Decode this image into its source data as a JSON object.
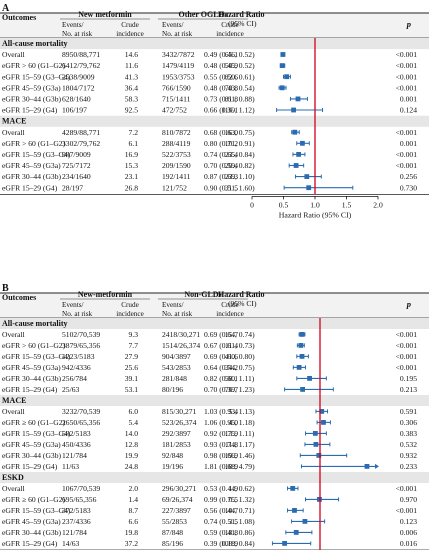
{
  "panels": [
    {
      "label": "A",
      "col_outcomes": "Outcomes",
      "group1": "New metformin",
      "group2": "Other OGLDs",
      "hr_header": [
        "Hazard Ratio",
        "(95% CI)"
      ],
      "p_header": "p",
      "sub_events": [
        "Events/",
        "No. at risk"
      ],
      "sub_crude": [
        "Crude",
        "incidence"
      ],
      "axis_label": "Hazard Ratio (95% CI)",
      "chart_data": {
        "type": "forest",
        "xlim": [
          0,
          2.0
        ],
        "ticks": [
          "0",
          "0.5",
          "1.0",
          "1.5",
          "2.0"
        ],
        "reference_line": 1.0,
        "sections": [
          {
            "title": "All-cause mortality",
            "rows": [
              {
                "label": "Overall",
                "ev1": "8950/88,771",
                "ci1": "14.6",
                "ev2": "3432/7872",
                "ci2": "65.1",
                "hr_text": "0.49 (0.46, 0.52)",
                "hr": 0.49,
                "lo": 0.46,
                "hi": 0.52,
                "p": "<0.001"
              },
              {
                "label": "eGFR > 60 (G1–G2)",
                "ev1": "6412/79,762",
                "ci1": "11.6",
                "ev2": "1479/4119",
                "ci2": "50.9",
                "hr_text": "0.48 (0.45, 0.52)",
                "hr": 0.48,
                "lo": 0.45,
                "hi": 0.52,
                "p": "<0.001"
              },
              {
                "label": "eGFR 15–59 (G3–G4)",
                "ev1": "2538/9009",
                "ci1": "41.3",
                "ev2": "1953/3753",
                "ci2": "82.6",
                "hr_text": "0.55 (0.50, 0.61)",
                "hr": 0.55,
                "lo": 0.5,
                "hi": 0.61,
                "p": "<0.001"
              },
              {
                "label": "eGFR 45–59 (G3a)",
                "ev1": "1804/7172",
                "ci1": "36.4",
                "ev2": "766/1590",
                "ci2": "70.8",
                "hr_text": "0.48 (0.43, 0.54)",
                "hr": 0.48,
                "lo": 0.43,
                "hi": 0.54,
                "p": "<0.001"
              },
              {
                "label": "eGFR 30–44 (G3b)",
                "ev1": "628/1640",
                "ci1": "58.3",
                "ev2": "715/1411",
                "ci2": "81.8",
                "hr_text": "0.73 (0.61, 0.88)",
                "hr": 0.73,
                "lo": 0.61,
                "hi": 0.88,
                "p": "0.001"
              },
              {
                "label": "eGFR 15–29 (G4)",
                "ev1": "106/197",
                "ci1": "92.5",
                "ev2": "472/752",
                "ci2": "116.1",
                "hr_text": "0.66 (0.39, 1.12)",
                "hr": 0.66,
                "lo": 0.39,
                "hi": 1.12,
                "p": "0.124"
              }
            ]
          },
          {
            "title": "MACE",
            "rows": [
              {
                "label": "Overall",
                "ev1": "4289/88,771",
                "ci1": "7.2",
                "ev2": "810/7872",
                "ci2": "16.0",
                "hr_text": "0.68 (0.63, 0.75)",
                "hr": 0.68,
                "lo": 0.63,
                "hi": 0.75,
                "p": "<0.001"
              },
              {
                "label": "eGFR > 60 (G1–G2)",
                "ev1": "3302/79,762",
                "ci1": "6.1",
                "ev2": "288/4119",
                "ci2": "10.2",
                "hr_text": "0.80 (0.71, 0.91)",
                "hr": 0.8,
                "lo": 0.71,
                "hi": 0.91,
                "p": "0.001"
              },
              {
                "label": "eGFR 15–59 (G3–G4)",
                "ev1": "987/9009",
                "ci1": "16.9",
                "ev2": "522/3753",
                "ci2": "23.4",
                "hr_text": "0.74 (0.65, 0.84)",
                "hr": 0.74,
                "lo": 0.65,
                "hi": 0.84,
                "p": "<0.001"
              },
              {
                "label": "eGFR 45–59 (G3a)",
                "ev1": "725/7172",
                "ci1": "15.3",
                "ev2": "209/1590",
                "ci2": "20.4",
                "hr_text": "0.70 (0.59, 0.82)",
                "hr": 0.7,
                "lo": 0.59,
                "hi": 0.82,
                "p": "<0.001"
              },
              {
                "label": "eGFR 30–44 (G3b)",
                "ev1": "234/1640",
                "ci1": "23.1",
                "ev2": "192/1411",
                "ci2": "23.3",
                "hr_text": "0.87 (0.69, 1.10)",
                "hr": 0.87,
                "lo": 0.69,
                "hi": 1.1,
                "p": "0.256"
              },
              {
                "label": "eGFR 15–29 (G4)",
                "ev1": "28/197",
                "ci1": "26.8",
                "ev2": "121/752",
                "ci2": "31.5",
                "hr_text": "0.90 (0.51, 1.60)",
                "hr": 0.9,
                "lo": 0.51,
                "hi": 1.6,
                "p": "0.730"
              }
            ]
          }
        ]
      }
    },
    {
      "label": "B",
      "col_outcomes": "Outcomes",
      "group1": "New-metformin",
      "group2": "Non-GLDs",
      "hr_header": [
        "Hazard Ratio",
        "(95% CI)"
      ],
      "p_header": "p",
      "sub_events": [
        "Events/",
        "No. at risk"
      ],
      "sub_crude": [
        "Crude",
        "incidence"
      ],
      "axis_label": "Hazard Ratio (95% CI)",
      "chart_data": {
        "type": "forest",
        "xlim": [
          0,
          2.0
        ],
        "ticks": [
          "0",
          "1.0",
          "2.0"
        ],
        "reference_line": 1.0,
        "sections": [
          {
            "title": "All-cause mortality",
            "rows": [
              {
                "label": "Overall",
                "ev1": "5102/70,539",
                "ci1": "9.3",
                "ev2": "2418/30,271",
                "ci2": "15.7",
                "hr_text": "0.69 (0.64, 0.74)",
                "hr": 0.69,
                "lo": 0.64,
                "hi": 0.74,
                "p": "<0.001"
              },
              {
                "label": "eGFR > 60 (G1–G2)",
                "ev1": "3879/65,356",
                "ci1": "7.7",
                "ev2": "1514/26,374",
                "ci2": "11.4",
                "hr_text": "0.67 (0.61, 0.73)",
                "hr": 0.67,
                "lo": 0.61,
                "hi": 0.73,
                "p": "<0.001"
              },
              {
                "label": "eGFR 15–59 (G3–G4)",
                "ev1": "1223/5183",
                "ci1": "27.9",
                "ev2": "904/3897",
                "ci2": "41.6",
                "hr_text": "0.69 (0.60, 0.80)",
                "hr": 0.69,
                "lo": 0.6,
                "hi": 0.8,
                "p": "<0.001"
              },
              {
                "label": "eGFR 45–59 (G3a)",
                "ev1": "942/4336",
                "ci1": "25.6",
                "ev2": "543/2853",
                "ci2": "34.2",
                "hr_text": "0.64 (0.54, 0.75)",
                "hr": 0.64,
                "lo": 0.54,
                "hi": 0.75,
                "p": "<0.001"
              },
              {
                "label": "eGFR 30–44 (G3b)",
                "ev1": "256/784",
                "ci1": "39.1",
                "ev2": "281/848",
                "ci2": "58.1",
                "hr_text": "0.82 (0.60, 1.11)",
                "hr": 0.82,
                "lo": 0.6,
                "hi": 1.11,
                "p": "0.195"
              },
              {
                "label": "eGFR 15–29 (G4)",
                "ev1": "25/63",
                "ci1": "53.1",
                "ev2": "80/196",
                "ci2": "76.7",
                "hr_text": "0.70 (0.39, 1.23)",
                "hr": 0.7,
                "lo": 0.39,
                "hi": 1.23,
                "p": "0.213"
              }
            ]
          },
          {
            "title": "MACE",
            "rows": [
              {
                "label": "Overall",
                "ev1": "3232/70,539",
                "ci1": "6.0",
                "ev2": "815/30,271",
                "ci2": "5.4",
                "hr_text": "1.03 (0.93, 1.13)",
                "hr": 1.03,
                "lo": 0.93,
                "hi": 1.13,
                "p": "0.591"
              },
              {
                "label": "eGFR ≥ 60 (G1–G2)",
                "ev1": "2650/65,356",
                "ci1": "5.4",
                "ev2": "523/26,374",
                "ci2": "4.0",
                "hr_text": "1.06 (0.95, 1.18)",
                "hr": 1.06,
                "lo": 0.95,
                "hi": 1.18,
                "p": "0.306"
              },
              {
                "label": "eGFR 15–59 (G3–G4)",
                "ev1": "582/5183",
                "ci1": "14.0",
                "ev2": "292/3897",
                "ci2": "13.9",
                "hr_text": "0.92 (0.75, 1.11)",
                "hr": 0.92,
                "lo": 0.75,
                "hi": 1.11,
                "p": "0.383"
              },
              {
                "label": "eGFR 45–59 (G3a)",
                "ev1": "450/4336",
                "ci1": "12.8",
                "ev2": "181/2853",
                "ci2": "11.8",
                "hr_text": "0.93 (0.74, 1.17)",
                "hr": 0.93,
                "lo": 0.74,
                "hi": 1.17,
                "p": "0.532"
              },
              {
                "label": "eGFR 30–44 (G3b)",
                "ev1": "121/784",
                "ci1": "19.9",
                "ev2": "92/848",
                "ci2": "19.9",
                "hr_text": "0.98 (0.66, 1.46)",
                "hr": 0.98,
                "lo": 0.66,
                "hi": 1.46,
                "p": "0.932"
              },
              {
                "label": "eGFR 15–29 (G4)",
                "ev1": "11/63",
                "ci1": "24.8",
                "ev2": "19/196",
                "ci2": "18.9",
                "hr_text": "1.81 (0.68, 4.79)",
                "hr": 1.81,
                "lo": 0.68,
                "hi": 4.79,
                "p": "0.233"
              }
            ]
          },
          {
            "title": "ESKD",
            "rows": [
              {
                "label": "Overall",
                "ev1": "1067/70,539",
                "ci1": "2.0",
                "ev2": "296/30,271",
                "ci2": "1.9",
                "hr_text": "0.53 (0.44, 0.62)",
                "hr": 0.53,
                "lo": 0.44,
                "hi": 0.62,
                "p": "<0.001"
              },
              {
                "label": "eGFR ≥ 60 (G1–G2)",
                "ev1": "695/65,356",
                "ci1": "1.4",
                "ev2": "69/26,374",
                "ci2": "0.5",
                "hr_text": "0.99 (0.75, 1.32)",
                "hr": 0.99,
                "lo": 0.75,
                "hi": 1.32,
                "p": "0.970"
              },
              {
                "label": "eGFR 15–59 (G3–G4)",
                "ev1": "372/5183",
                "ci1": "8.7",
                "ev2": "227/3897",
                "ci2": "10.7",
                "hr_text": "0.56 (0.44, 0.71)",
                "hr": 0.56,
                "lo": 0.44,
                "hi": 0.71,
                "p": "<0.001"
              },
              {
                "label": "eGFR 45–59 (G3a)",
                "ev1": "237/4336",
                "ci1": "6.6",
                "ev2": "55/2853",
                "ci2": "3.5",
                "hr_text": "0.74 (0.51, 1.08)",
                "hr": 0.74,
                "lo": 0.51,
                "hi": 1.08,
                "p": "0.123"
              },
              {
                "label": "eGFR 30–44 (G3b)",
                "ev1": "121/784",
                "ci1": "19.8",
                "ev2": "87/848",
                "ci2": "18.8",
                "hr_text": "0.59 (0.41, 0.86)",
                "hr": 0.59,
                "lo": 0.41,
                "hi": 0.86,
                "p": "0.006"
              },
              {
                "label": "eGFR 15–29 (G4)",
                "ev1": "14/63",
                "ci1": "37.2",
                "ev2": "85/196",
                "ci2": "108.9",
                "hr_text": "0.39 (0.18, 0.84)",
                "hr": 0.39,
                "lo": 0.18,
                "hi": 0.84,
                "p": "0.016"
              }
            ]
          }
        ]
      }
    }
  ],
  "colors": {
    "point": "#2b6cb0",
    "reference": "#d0021b",
    "section_bg": "#e6e6e6",
    "header_bg": "#f2f2f2"
  }
}
